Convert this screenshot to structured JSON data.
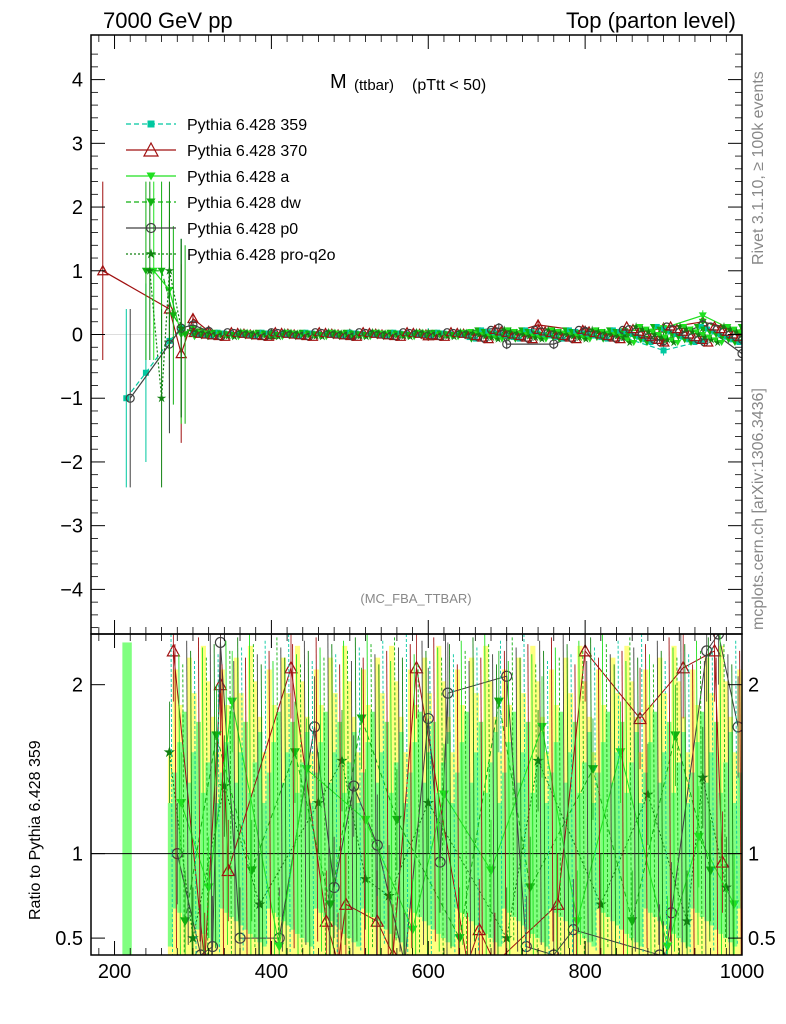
{
  "header": {
    "left": "7000 GeV pp",
    "right": "Top (parton level)"
  },
  "side_text": {
    "top": "Rivet 3.1.10, ≥ 100k events",
    "bottom": "mcplots.cern.ch [arXiv:1306.3436]"
  },
  "plot_title": {
    "main": "M",
    "sub": "(ttbar)",
    "cut": "(pTtt < 50)"
  },
  "watermark": "(MC_FBA_TTBAR)",
  "ratio_ylabel": "Ratio to Pythia 6.428 359",
  "colors": {
    "p359": "#00c8a0",
    "p370": "#a01010",
    "pa": "#20e020",
    "pdw": "#10b010",
    "pp0": "#404040",
    "pq2o": "#108010",
    "band_yellow": "#ffff80",
    "band_green": "#80ff80"
  },
  "chart_data": [
    {
      "type": "line",
      "panel": "main",
      "title": "M (ttbar) (pTtt < 50)",
      "xlim": [
        170,
        1000
      ],
      "ylim": [
        -4.7,
        4.7
      ],
      "yticks": [
        -4,
        -3,
        -2,
        -1,
        0,
        1,
        2,
        3,
        4
      ],
      "ytick_labels": [
        "−4",
        "−3",
        "−2",
        "−1",
        "0",
        "1",
        "2",
        "3",
        "4"
      ],
      "legend_position": "top-left",
      "series": [
        {
          "name": "Pythia 6.428 359",
          "key": "p359",
          "marker": "square",
          "dash": "dashed",
          "x": [
            215,
            240,
            270,
            285,
            300,
            320,
            400,
            500,
            600,
            700,
            800,
            850,
            900,
            950,
            1000
          ],
          "y": [
            -1.0,
            -0.6,
            -0.1,
            0.1,
            0.05,
            0.0,
            0.0,
            0.0,
            0.02,
            0.03,
            0.0,
            -0.05,
            -0.25,
            -0.1,
            0.0
          ]
        },
        {
          "name": "Pythia 6.428 370",
          "key": "p370",
          "marker": "triangle-open",
          "dash": "solid",
          "x": [
            185,
            270,
            285,
            300,
            320,
            400,
            500,
            600,
            700,
            740,
            800,
            850,
            900,
            950,
            1000
          ],
          "y": [
            1.0,
            0.4,
            -0.3,
            0.25,
            0.05,
            0.0,
            0.0,
            -0.02,
            0.0,
            0.15,
            0.05,
            0.0,
            0.1,
            0.2,
            0.05
          ]
        },
        {
          "name": "Pythia 6.428 a",
          "key": "pa",
          "marker": "triangle-down",
          "dash": "solid",
          "x": [
            250,
            270,
            285,
            300,
            320,
            400,
            500,
            600,
            700,
            800,
            850,
            900,
            950,
            1000
          ],
          "y": [
            1.0,
            0.7,
            0.0,
            0.1,
            0.0,
            0.0,
            0.0,
            0.0,
            0.02,
            0.0,
            0.05,
            0.1,
            0.3,
            0.0
          ]
        },
        {
          "name": "Pythia 6.428 dw",
          "key": "pdw",
          "marker": "triangle-down",
          "dash": "dashed",
          "x": [
            240,
            260,
            275,
            290,
            310,
            400,
            500,
            600,
            700,
            800,
            850,
            900,
            950,
            1000
          ],
          "y": [
            1.0,
            1.0,
            0.3,
            0.0,
            0.05,
            0.0,
            0.0,
            0.0,
            0.0,
            0.0,
            0.05,
            -0.1,
            0.2,
            0.0
          ]
        },
        {
          "name": "Pythia 6.428 p0",
          "key": "pp0",
          "marker": "circle-open",
          "dash": "solid",
          "x": [
            220,
            270,
            285,
            300,
            320,
            400,
            500,
            600,
            690,
            700,
            760,
            800,
            850,
            900,
            950,
            1000
          ],
          "y": [
            -1.0,
            -0.15,
            0.1,
            0.15,
            0.05,
            0.0,
            0.0,
            0.0,
            0.1,
            -0.15,
            -0.15,
            0.05,
            0.0,
            -0.1,
            0.15,
            -0.3
          ]
        },
        {
          "name": "Pythia 6.428 pro-q2o",
          "key": "pq2o",
          "marker": "star",
          "dash": "dotted",
          "x": [
            245,
            260,
            270,
            285,
            300,
            320,
            400,
            500,
            600,
            700,
            800,
            850,
            900,
            950,
            1000
          ],
          "y": [
            1.0,
            -1.0,
            1.0,
            0.1,
            0.05,
            0.0,
            0.0,
            0.0,
            0.0,
            0.0,
            0.0,
            0.0,
            -0.05,
            0.1,
            -0.1
          ]
        }
      ]
    },
    {
      "type": "line",
      "panel": "ratio",
      "ylabel": "Ratio to Pythia 6.428 359",
      "xlim": [
        170,
        1000
      ],
      "ylim": [
        0.4,
        2.3
      ],
      "yticks": [
        0.5,
        1,
        2
      ],
      "ytick_labels": [
        "0.5",
        "1",
        "2"
      ],
      "xticks": [
        200,
        400,
        600,
        800,
        1000
      ],
      "xtick_labels": [
        "200",
        "400",
        "600",
        "800",
        "1000"
      ],
      "reference_line": 1,
      "series": [
        {
          "name": "Pythia 6.428 370",
          "key": "p370",
          "x": [
            275,
            315,
            335,
            345,
            425,
            470,
            485,
            495,
            535,
            555,
            585,
            650,
            665,
            685,
            765,
            800,
            870,
            925,
            965,
            975
          ],
          "y": [
            2.2,
            0.35,
            2.0,
            0.9,
            2.1,
            0.6,
            0.35,
            0.7,
            0.6,
            0.4,
            2.1,
            0.35,
            0.55,
            0.35,
            0.7,
            2.2,
            1.8,
            2.1,
            2.2,
            0.95
          ]
        },
        {
          "name": "Pythia 6.428 p0",
          "key": "pp0",
          "x": [
            280,
            310,
            325,
            335,
            360,
            410,
            455,
            480,
            505,
            535,
            570,
            600,
            615,
            625,
            700,
            725,
            760,
            785,
            895,
            900,
            910,
            955,
            970,
            995
          ],
          "y": [
            1.0,
            0.4,
            0.45,
            2.25,
            0.5,
            0.5,
            1.75,
            0.8,
            1.4,
            1.05,
            0.35,
            1.8,
            0.95,
            1.95,
            2.05,
            0.45,
            0.4,
            0.55,
            0.4,
            0.3,
            0.65,
            2.2,
            2.3,
            1.75
          ]
        },
        {
          "name": "Pythia 6.428 pro-q2o",
          "key": "pq2o",
          "x": [
            270,
            300,
            340,
            385,
            460,
            490,
            520,
            550,
            600,
            700,
            740,
            820,
            880,
            930,
            950,
            980
          ],
          "y": [
            1.6,
            0.5,
            1.4,
            0.7,
            1.3,
            1.55,
            0.85,
            0.75,
            1.3,
            0.5,
            1.55,
            0.7,
            1.35,
            0.6,
            1.45,
            0.8
          ]
        },
        {
          "name": "Pythia 6.428 a",
          "key": "pa",
          "x": [
            285,
            320,
            350,
            410,
            445,
            520,
            580,
            620,
            680,
            745,
            790,
            845,
            905,
            945,
            990
          ],
          "y": [
            1.3,
            0.8,
            1.9,
            0.45,
            1.5,
            1.2,
            0.55,
            1.35,
            0.9,
            1.75,
            0.6,
            1.6,
            0.45,
            1.1,
            0.7
          ]
        },
        {
          "name": "Pythia 6.428 dw",
          "key": "pdw",
          "x": [
            290,
            330,
            375,
            430,
            475,
            515,
            560,
            640,
            690,
            730,
            810,
            860,
            915,
            960
          ],
          "y": [
            0.6,
            1.7,
            0.9,
            1.6,
            0.7,
            1.8,
            1.2,
            0.5,
            1.9,
            0.8,
            1.5,
            0.6,
            1.7,
            0.9
          ]
        }
      ]
    }
  ]
}
